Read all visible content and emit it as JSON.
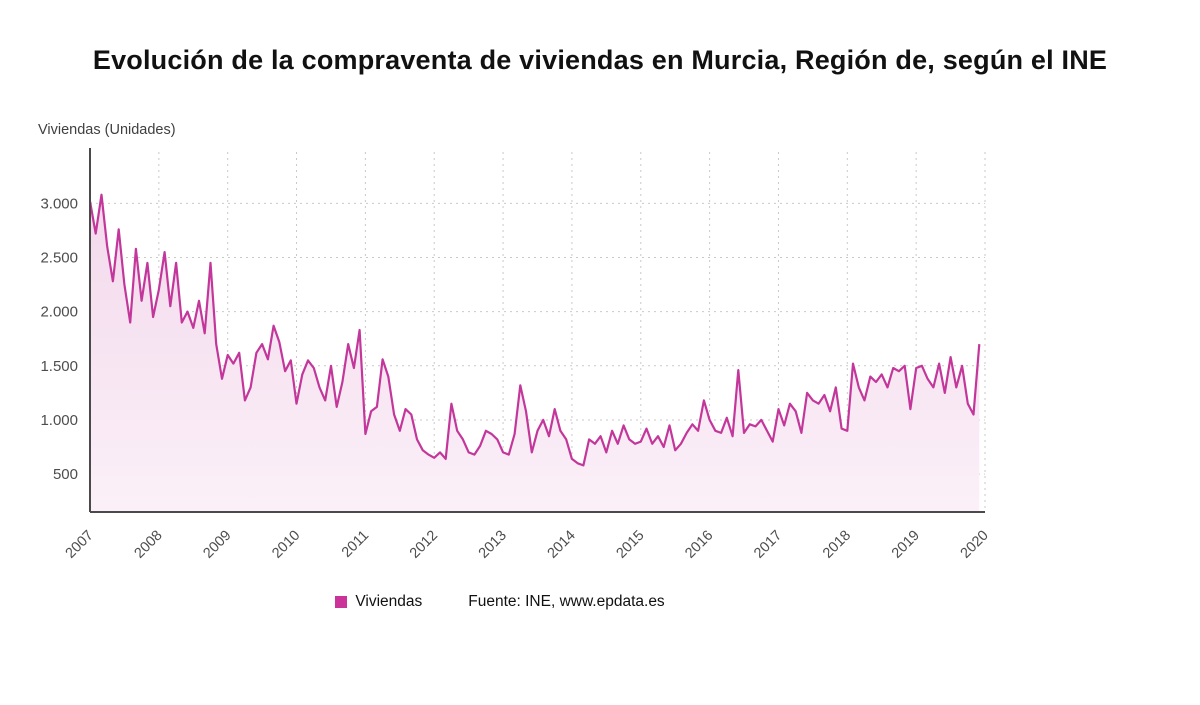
{
  "title": "Evolución de la compraventa de viviendas en Murcia, Región de, según el INE",
  "y_axis_title": "Viviendas (Unidades)",
  "legend": {
    "series_label": "Viviendas",
    "series_color": "#cc3399",
    "source": "Fuente: INE, www.epdata.es"
  },
  "chart_data": {
    "type": "line",
    "title": "Evolución de la compraventa de viviendas en Murcia, Región de, según el INE",
    "ylabel": "Viviendas (Unidades)",
    "x_tick_years": [
      "2007",
      "2008",
      "2009",
      "2010",
      "2011",
      "2012",
      "2013",
      "2014",
      "2015",
      "2016",
      "2017",
      "2018",
      "2019",
      "2020"
    ],
    "yticks": [
      500,
      1000,
      1500,
      2000,
      2500,
      3000
    ],
    "ytick_labels": [
      "500",
      "1.000",
      "1.500",
      "2.000",
      "2.500",
      "3.000"
    ],
    "ylim": [
      150,
      3400
    ],
    "grid": "dotted",
    "legend_position": "bottom",
    "line_color": "#c3379b",
    "area_color_top": "#f3d9ec",
    "area_color_bottom": "#fbf0f8",
    "x_start_year": 2007,
    "points_per_year": 12,
    "values": [
      3020,
      2720,
      3080,
      2600,
      2280,
      2760,
      2250,
      1900,
      2580,
      2100,
      2450,
      1950,
      2200,
      2550,
      2050,
      2450,
      1900,
      2000,
      1850,
      2100,
      1800,
      2450,
      1700,
      1380,
      1600,
      1520,
      1620,
      1180,
      1300,
      1620,
      1700,
      1560,
      1870,
      1720,
      1450,
      1550,
      1150,
      1420,
      1550,
      1480,
      1300,
      1180,
      1500,
      1120,
      1350,
      1700,
      1480,
      1830,
      870,
      1080,
      1120,
      1560,
      1400,
      1050,
      900,
      1100,
      1050,
      820,
      720,
      680,
      650,
      700,
      640,
      1150,
      900,
      820,
      700,
      680,
      760,
      900,
      870,
      820,
      700,
      680,
      870,
      1320,
      1080,
      700,
      900,
      1000,
      850,
      1100,
      900,
      820,
      640,
      600,
      580,
      820,
      780,
      850,
      700,
      900,
      780,
      950,
      820,
      780,
      800,
      920,
      780,
      850,
      750,
      950,
      720,
      780,
      880,
      960,
      900,
      1180,
      1000,
      900,
      880,
      1020,
      850,
      1460,
      880,
      960,
      940,
      1000,
      900,
      800,
      1100,
      950,
      1150,
      1080,
      880,
      1250,
      1180,
      1150,
      1230,
      1080,
      1300,
      920,
      900,
      1520,
      1300,
      1180,
      1400,
      1350,
      1420,
      1300,
      1480,
      1450,
      1500,
      1100,
      1480,
      1500,
      1380,
      1300,
      1520,
      1250,
      1580,
      1300,
      1500,
      1150,
      1050,
      1700
    ]
  }
}
